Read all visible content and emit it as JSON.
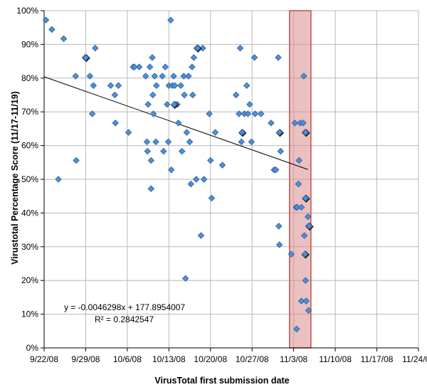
{
  "chart_data": {
    "type": "scatter",
    "title": "",
    "xlabel": "VirusTotal first submission date",
    "ylabel": "Virustotal Percentage Score (11/17-11/19)",
    "x_unit": "days after 9/22/08",
    "xlim": [
      0,
      63
    ],
    "ylim": [
      0,
      100
    ],
    "x_ticks": [
      {
        "label": "9/22/08",
        "x": 0
      },
      {
        "label": "9/29/08",
        "x": 7
      },
      {
        "label": "10/6/08",
        "x": 14
      },
      {
        "label": "10/13/08",
        "x": 21
      },
      {
        "label": "10/20/08",
        "x": 28
      },
      {
        "label": "10/27/08",
        "x": 35
      },
      {
        "label": "11/3/08",
        "x": 42
      },
      {
        "label": "11/10/08",
        "x": 49
      },
      {
        "label": "11/17/08",
        "x": 56
      },
      {
        "label": "11/24/08",
        "x": 63
      }
    ],
    "y_ticks": [
      {
        "label": "0%",
        "y": 0
      },
      {
        "label": "10%",
        "y": 10
      },
      {
        "label": "20%",
        "y": 20
      },
      {
        "label": "30%",
        "y": 30
      },
      {
        "label": "40%",
        "y": 40
      },
      {
        "label": "50%",
        "y": 50
      },
      {
        "label": "60%",
        "y": 60
      },
      {
        "label": "70%",
        "y": 70
      },
      {
        "label": "80%",
        "y": 80
      },
      {
        "label": "90%",
        "y": 90
      },
      {
        "label": "100%",
        "y": 100
      }
    ],
    "grid": true,
    "series": [
      {
        "name": "Samples",
        "color": "#4f8fd6",
        "points": [
          [
            0.3,
            97.2
          ],
          [
            1.3,
            94.4
          ],
          [
            2.4,
            50
          ],
          [
            3.3,
            91.7
          ],
          [
            5.3,
            80.6
          ],
          [
            5.4,
            55.6
          ],
          [
            6.9,
            86.1
          ],
          [
            7.0,
            86.1
          ],
          [
            7.7,
            80.6
          ],
          [
            8.1,
            69.4
          ],
          [
            8.3,
            77.8
          ],
          [
            8.6,
            88.9
          ],
          [
            11.2,
            77.8
          ],
          [
            11.9,
            75
          ],
          [
            12.0,
            66.7
          ],
          [
            12.5,
            77.8
          ],
          [
            14.2,
            63.9
          ],
          [
            15.0,
            83.3
          ],
          [
            15.2,
            83.3
          ],
          [
            16.0,
            83.3
          ],
          [
            17.1,
            80.6
          ],
          [
            17.3,
            61.1
          ],
          [
            17.4,
            58.3
          ],
          [
            17.5,
            72.2
          ],
          [
            17.8,
            83.3
          ],
          [
            18.0,
            55.6
          ],
          [
            18.0,
            47.2
          ],
          [
            18.2,
            86.1
          ],
          [
            18.3,
            75
          ],
          [
            18.4,
            69.4
          ],
          [
            18.6,
            80.6
          ],
          [
            18.8,
            61.1
          ],
          [
            18.9,
            77.8
          ],
          [
            19.9,
            80.6
          ],
          [
            20.1,
            58.3
          ],
          [
            20.4,
            83.3
          ],
          [
            20.7,
            72.2
          ],
          [
            20.9,
            61.1
          ],
          [
            21.0,
            77.8
          ],
          [
            21.3,
            97.2
          ],
          [
            21.4,
            52.8
          ],
          [
            21.6,
            77.8
          ],
          [
            21.8,
            80.6
          ],
          [
            22.0,
            77.8
          ],
          [
            22.4,
            72.2
          ],
          [
            22.6,
            66.7
          ],
          [
            23.0,
            77.8
          ],
          [
            23.2,
            58.3
          ],
          [
            23.5,
            80.6
          ],
          [
            23.6,
            75
          ],
          [
            23.8,
            20.6
          ],
          [
            24.0,
            63.9
          ],
          [
            24.3,
            80.6
          ],
          [
            24.5,
            61.1
          ],
          [
            24.7,
            48.6
          ],
          [
            24.9,
            83.3
          ],
          [
            25.0,
            75
          ],
          [
            25.2,
            86.1
          ],
          [
            25.6,
            50
          ],
          [
            25.7,
            88.9
          ],
          [
            25.9,
            88.9
          ],
          [
            26.4,
            33.3
          ],
          [
            26.7,
            88.9
          ],
          [
            26.9,
            50
          ],
          [
            27.8,
            69.4
          ],
          [
            28.0,
            55.6
          ],
          [
            28.2,
            44.4
          ],
          [
            28.8,
            63.9
          ],
          [
            30.0,
            54.2
          ],
          [
            32.3,
            75
          ],
          [
            32.8,
            69.4
          ],
          [
            33.0,
            88.9
          ],
          [
            33.2,
            61.1
          ],
          [
            33.3,
            63.9
          ],
          [
            33.7,
            69.4
          ],
          [
            34.1,
            77.8
          ],
          [
            34.3,
            69.4
          ],
          [
            34.6,
            72.2
          ],
          [
            34.9,
            61.1
          ],
          [
            35.4,
            86.1
          ],
          [
            35.5,
            69.4
          ],
          [
            36.5,
            69.4
          ],
          [
            38.2,
            66.7
          ],
          [
            38.7,
            52.8
          ],
          [
            39.0,
            52.8
          ],
          [
            39.4,
            86.1
          ],
          [
            39.6,
            63.9
          ],
          [
            39.8,
            58.3
          ],
          [
            39.5,
            36.1
          ],
          [
            39.6,
            30.6
          ],
          [
            41.6,
            27.8
          ],
          [
            42.4,
            41.7
          ],
          [
            42.6,
            41.7
          ],
          [
            42.2,
            66.7
          ],
          [
            42.5,
            5.6
          ],
          [
            42.8,
            48.6
          ],
          [
            42.9,
            55.6
          ],
          [
            43.1,
            66.7
          ],
          [
            43.3,
            41.7
          ],
          [
            43.3,
            13.9
          ],
          [
            43.6,
            66.7
          ],
          [
            43.7,
            80.6
          ],
          [
            43.8,
            33.3
          ],
          [
            43.9,
            63.9
          ],
          [
            44.0,
            44.4
          ],
          [
            44.0,
            44.4
          ],
          [
            43.9,
            27.8
          ],
          [
            44.0,
            20
          ],
          [
            44.1,
            13.9
          ],
          [
            44.1,
            13.9
          ],
          [
            44.4,
            38.9
          ],
          [
            44.5,
            36.1
          ],
          [
            44.6,
            36.1
          ],
          [
            44.5,
            11.1
          ]
        ]
      }
    ],
    "highlighted_points": [
      [
        7.0,
        86.1
      ],
      [
        21.9,
        72.2
      ],
      [
        25.8,
        88.9
      ],
      [
        33.3,
        63.9
      ],
      [
        39.6,
        63.9
      ],
      [
        44.0,
        63.9
      ],
      [
        44.0,
        44.4
      ],
      [
        43.9,
        27.8
      ],
      [
        44.6,
        36.1
      ]
    ],
    "trendline": {
      "equation": "y = -0.0046298x + 177.8954007",
      "r_squared": "R² = 0.2842547",
      "x_range": [
        0,
        44.4
      ],
      "y_start": 80.4,
      "y_end": 52.9
    },
    "highlight_band": {
      "label": "",
      "x_range": [
        41.3,
        44.9
      ],
      "color": "#d98c8c"
    }
  }
}
